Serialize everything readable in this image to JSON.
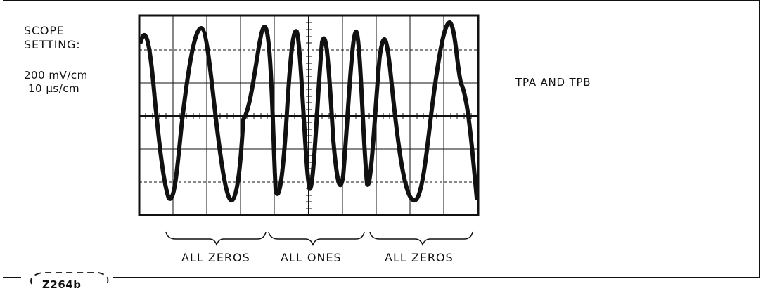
{
  "scope": {
    "title_line1": "SCOPE",
    "title_line2": "SETTING:",
    "vertical": "200 mV/cm",
    "horizontal": "10 µs/cm"
  },
  "signal_name": "TPA AND TPB",
  "sections": [
    {
      "label": "ALL ZEROS"
    },
    {
      "label": "ALL ONES"
    },
    {
      "label": "ALL ZEROS"
    }
  ],
  "figure_id": "Z264b",
  "colors": {
    "ink": "#111111",
    "background": "#ffffff"
  }
}
